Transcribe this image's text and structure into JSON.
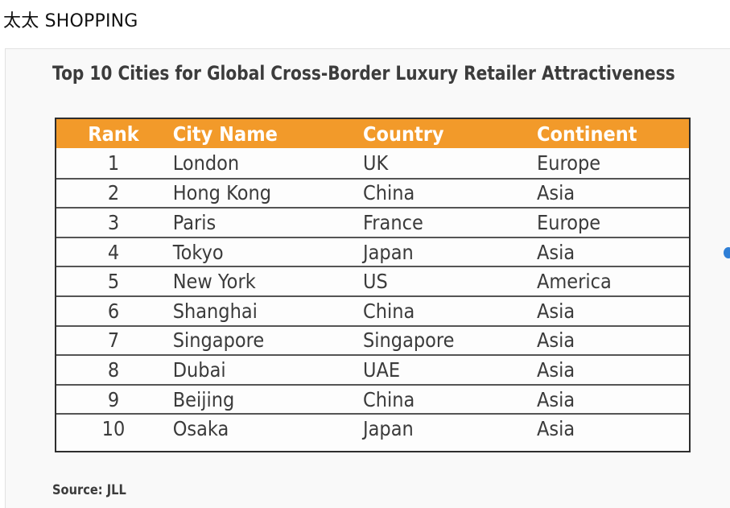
{
  "site": {
    "title": "太太 SHOPPING"
  },
  "image": {
    "title": "Top 10 Cities for Global Cross-Border Luxury Retailer Attractiveness",
    "source": "Source: JLL"
  },
  "table": {
    "headers": [
      "Rank",
      "City Name",
      "Country",
      "Continent"
    ],
    "rows": [
      [
        "1",
        "London",
        "UK",
        "Europe"
      ],
      [
        "2",
        "Hong Kong",
        "China",
        "Asia"
      ],
      [
        "3",
        "Paris",
        "France",
        "Europe"
      ],
      [
        "4",
        "Tokyo",
        "Japan",
        "Asia"
      ],
      [
        "5",
        "New York",
        "US",
        "America"
      ],
      [
        "6",
        "Shanghai",
        "China",
        "Asia"
      ],
      [
        "7",
        "Singapore",
        "Singapore",
        "Asia"
      ],
      [
        "8",
        "Dubai",
        "UAE",
        "Asia"
      ],
      [
        "9",
        "Beijing",
        "China",
        "Asia"
      ],
      [
        "10",
        "Osaka",
        "Japan",
        "Asia"
      ]
    ]
  },
  "colors": {
    "header_bg": "#f29a2a",
    "header_text": "#ffffff",
    "cell_text": "#3b3b3b",
    "indicator_dot": "#2f7fd6"
  }
}
